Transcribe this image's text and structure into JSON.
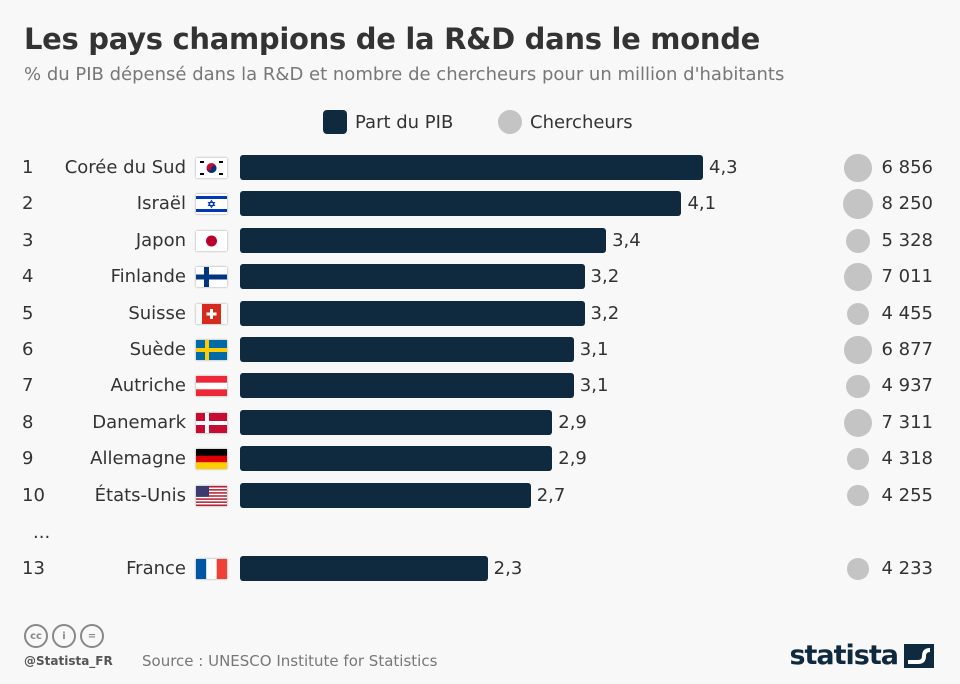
{
  "chart_data": {
    "type": "bar",
    "title": "Les pays champions de la R&D dans le monde",
    "subtitle": "% du PIB dépensé dans la R&D et nombre de chercheurs pour un million d'habitants",
    "legend": [
      {
        "name": "Part du PIB",
        "color": "#0f2a3f",
        "shape": "square"
      },
      {
        "name": "Chercheurs",
        "color": "#c4c4c4",
        "shape": "circle"
      }
    ],
    "legend_position": "top-center",
    "grid": false,
    "ellipsis": "...",
    "rows": [
      {
        "rank": "1",
        "country": "Corée du Sud",
        "flag": "kr",
        "pib": 4.3,
        "pib_label": "4,3",
        "researchers": 6856,
        "researchers_label": "6 856"
      },
      {
        "rank": "2",
        "country": "Israël",
        "flag": "il",
        "pib": 4.1,
        "pib_label": "4,1",
        "researchers": 8250,
        "researchers_label": "8 250"
      },
      {
        "rank": "3",
        "country": "Japon",
        "flag": "jp",
        "pib": 3.4,
        "pib_label": "3,4",
        "researchers": 5328,
        "researchers_label": "5 328"
      },
      {
        "rank": "4",
        "country": "Finlande",
        "flag": "fi",
        "pib": 3.2,
        "pib_label": "3,2",
        "researchers": 7011,
        "researchers_label": "7 011"
      },
      {
        "rank": "5",
        "country": "Suisse",
        "flag": "ch",
        "pib": 3.2,
        "pib_label": "3,2",
        "researchers": 4455,
        "researchers_label": "4 455"
      },
      {
        "rank": "6",
        "country": "Suède",
        "flag": "se",
        "pib": 3.1,
        "pib_label": "3,1",
        "researchers": 6877,
        "researchers_label": "6 877"
      },
      {
        "rank": "7",
        "country": "Autriche",
        "flag": "at",
        "pib": 3.1,
        "pib_label": "3,1",
        "researchers": 4937,
        "researchers_label": "4 937"
      },
      {
        "rank": "8",
        "country": "Danemark",
        "flag": "dk",
        "pib": 2.9,
        "pib_label": "2,9",
        "researchers": 7311,
        "researchers_label": "7 311"
      },
      {
        "rank": "9",
        "country": "Allemagne",
        "flag": "de",
        "pib": 2.9,
        "pib_label": "2,9",
        "researchers": 4318,
        "researchers_label": "4 318"
      },
      {
        "rank": "10",
        "country": "États-Unis",
        "flag": "us",
        "pib": 2.7,
        "pib_label": "2,7",
        "researchers": 4255,
        "researchers_label": "4 255"
      },
      {
        "rank": "13",
        "country": "France",
        "flag": "fr",
        "pib": 2.3,
        "pib_label": "2,3",
        "researchers": 4233,
        "researchers_label": "4 233"
      }
    ]
  },
  "footer": {
    "handle": "@Statista_FR",
    "source": "Source : UNESCO Institute for Statistics",
    "logo": "statista",
    "license_icons": [
      "cc",
      "by",
      "nd"
    ]
  }
}
